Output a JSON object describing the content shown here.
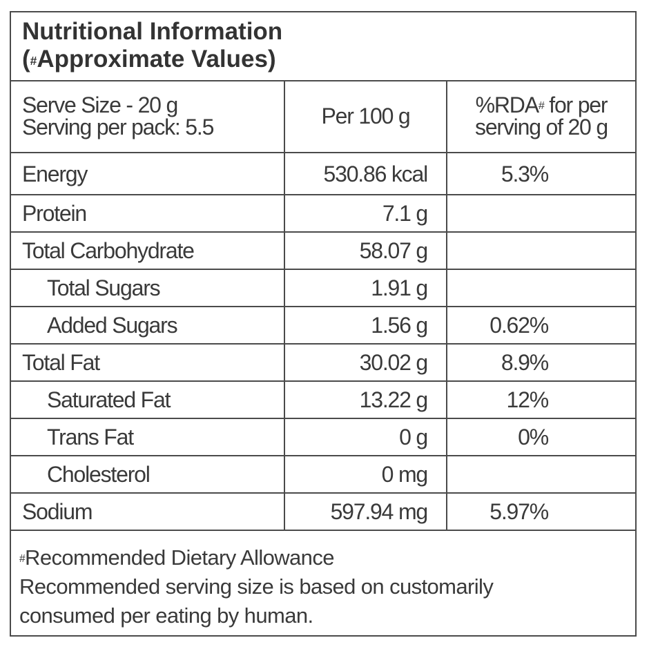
{
  "title": {
    "line1": "Nutritional Information",
    "line2_pre": "(",
    "line2_sup": "#",
    "line2": "Approximate Values)"
  },
  "header": {
    "serve_size": "Serve Size - 20 g",
    "serving_per_pack": "Serving per pack: 5.5",
    "per100": "Per 100 g",
    "rda_pre": "%RDA",
    "rda_sup": "#",
    "rda_post": " for per",
    "rda_line2": "serving of 20 g"
  },
  "rows": [
    {
      "name": "Energy",
      "per100": "530.86 kcal",
      "rda": "5.3%",
      "indent": false
    },
    {
      "name": "Protein",
      "per100": "7.1 g",
      "rda": "",
      "indent": false
    },
    {
      "name": "Total Carbohydrate",
      "per100": "58.07 g",
      "rda": "",
      "indent": false
    },
    {
      "name": "Total Sugars",
      "per100": "1.91 g",
      "rda": "",
      "indent": true
    },
    {
      "name": "Added Sugars",
      "per100": "1.56 g",
      "rda": "0.62%",
      "indent": true
    },
    {
      "name": "Total Fat",
      "per100": "30.02 g",
      "rda": "8.9%",
      "indent": false
    },
    {
      "name": "Saturated Fat",
      "per100": "13.22 g",
      "rda": "12%",
      "indent": true
    },
    {
      "name": "Trans Fat",
      "per100": "0 g",
      "rda": "0%",
      "indent": true
    },
    {
      "name": "Cholesterol",
      "per100": "0 mg",
      "rda": "",
      "indent": true
    },
    {
      "name": "Sodium",
      "per100": "597.94 mg",
      "rda": "5.97%",
      "indent": false
    }
  ],
  "footer": {
    "sup": "#",
    "line1": "Recommended Dietary Allowance",
    "line2": "Recommended serving size is based on customarily",
    "line3": "consumed per eating by human."
  }
}
